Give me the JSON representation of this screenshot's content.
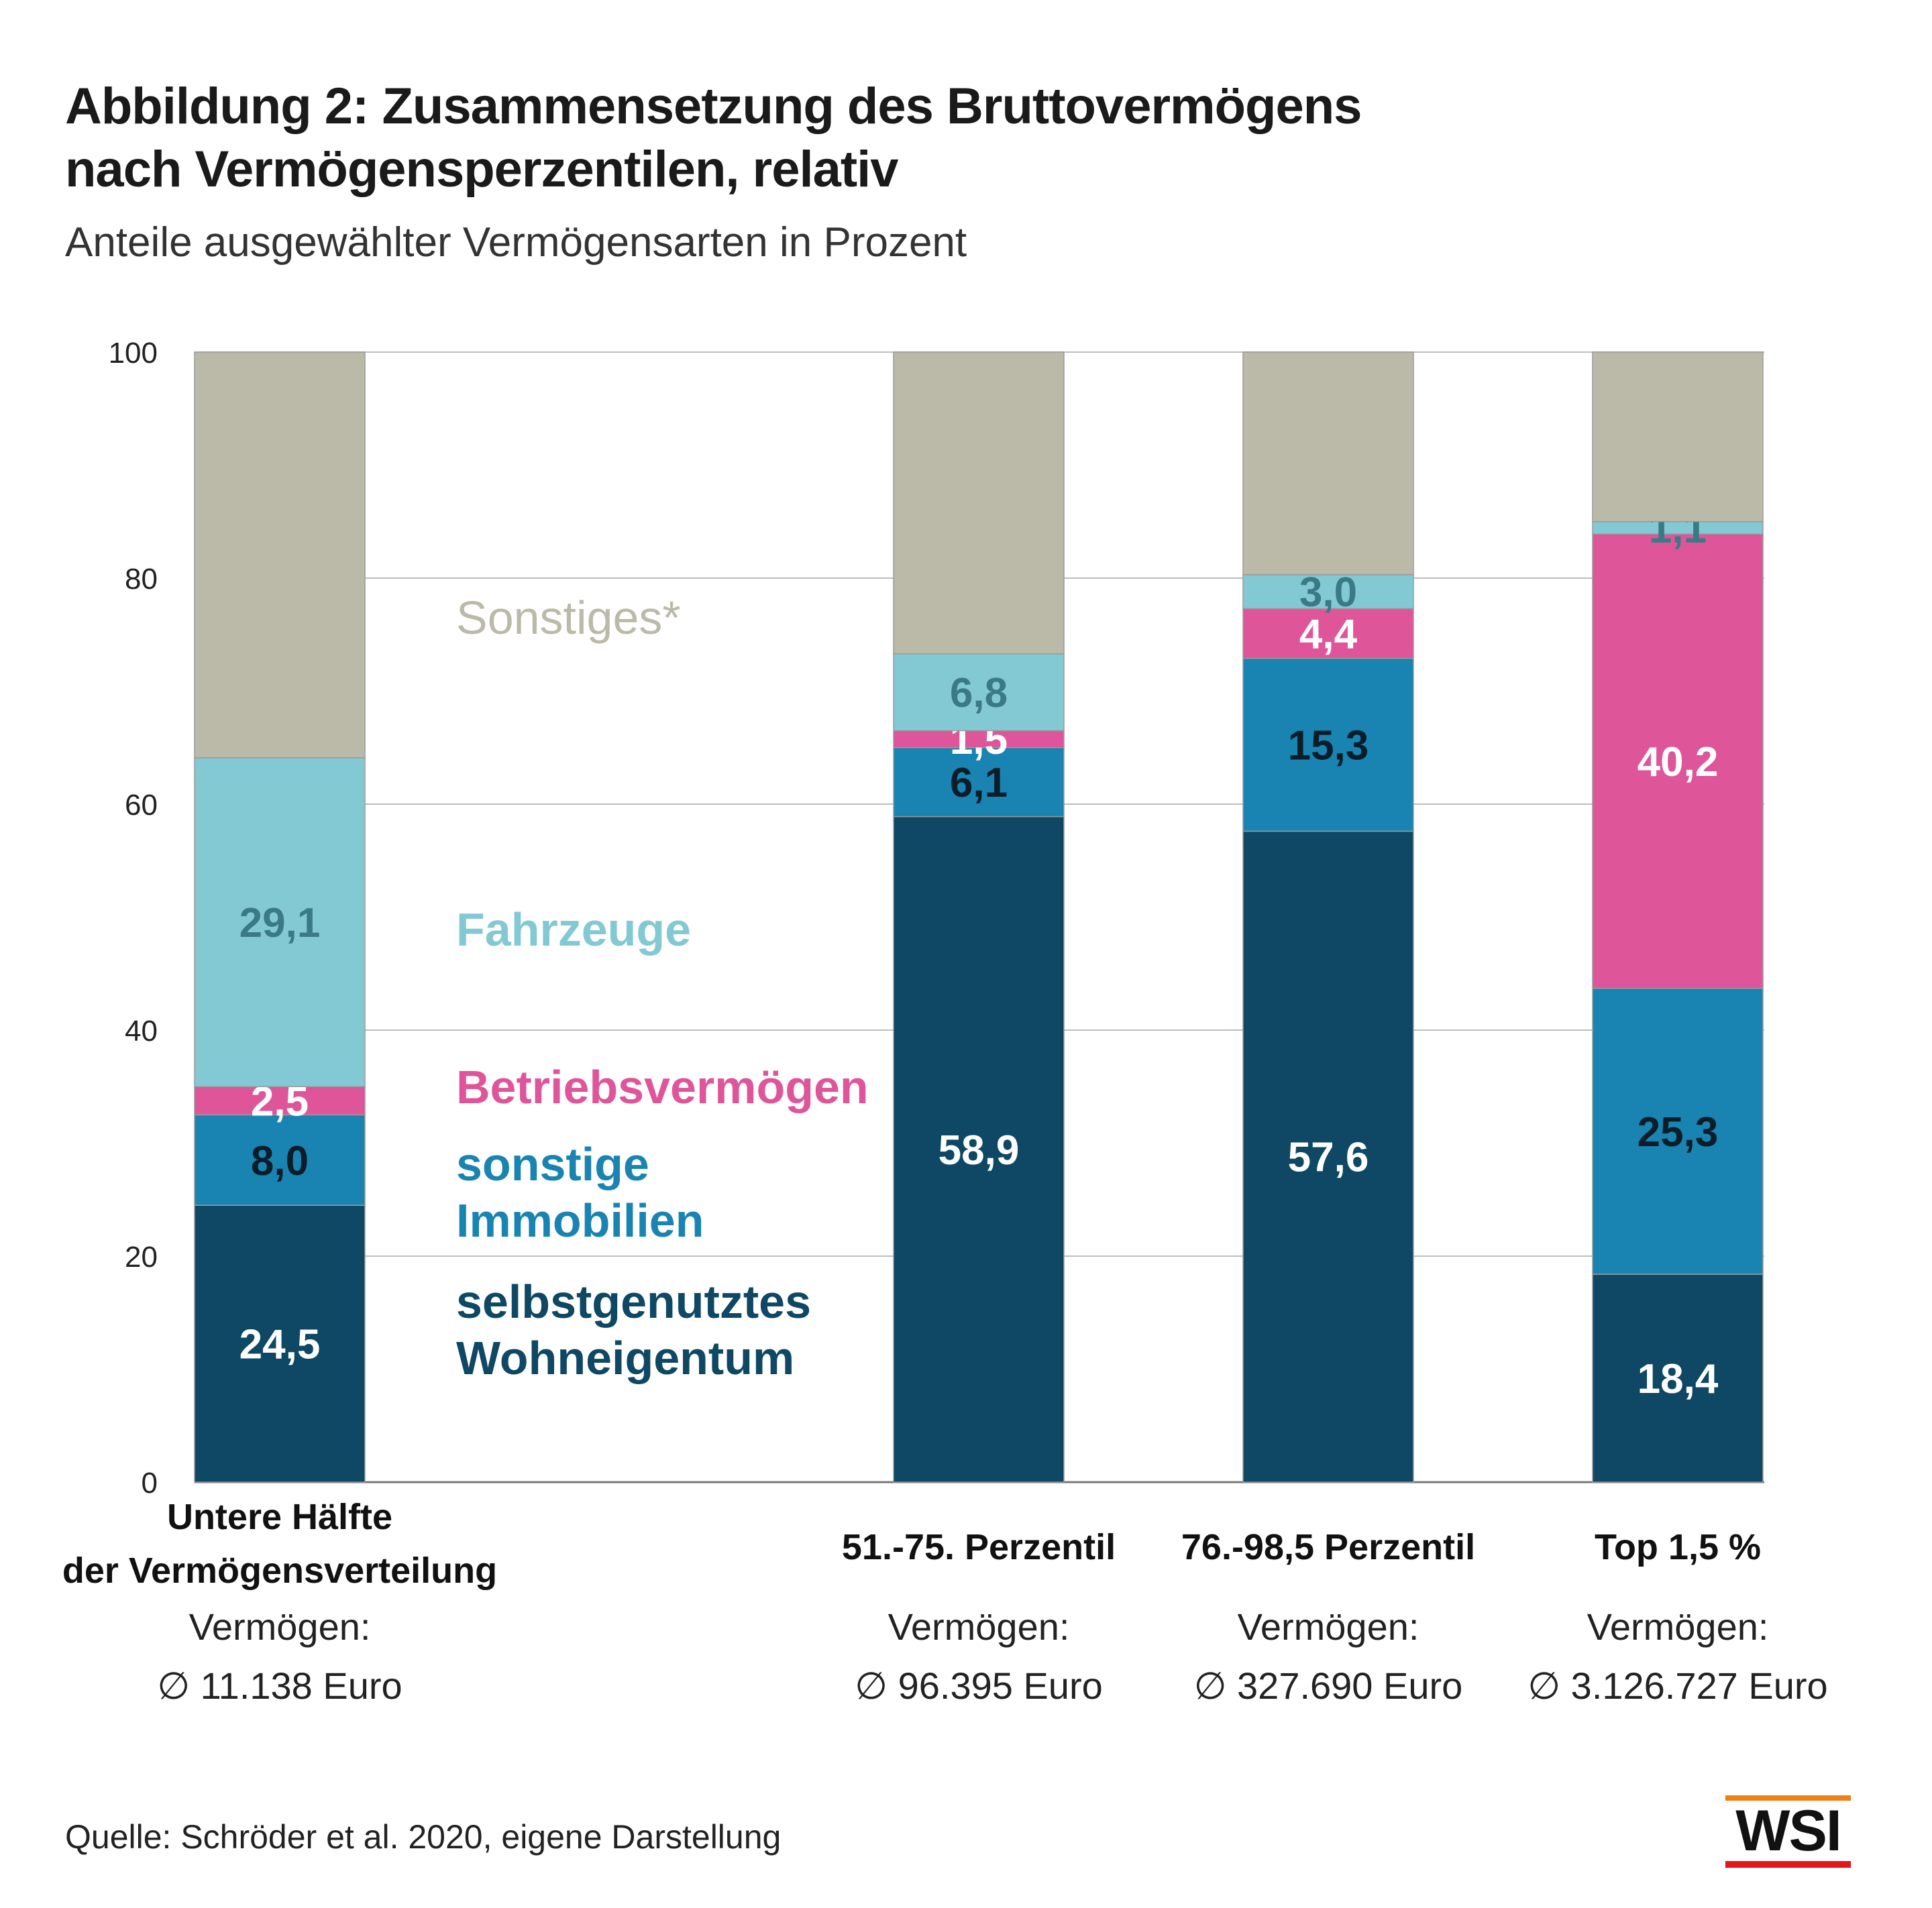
{
  "title_line1": "Abbildung 2: Zusammensetzung des Bruttovermögens",
  "title_line2": "nach Vermögensperzentilen, relativ",
  "subtitle": "Anteile ausgewählter Vermögensarten in Prozent",
  "source": "Quelle: Schröder et al. 2020, eigene Darstellung",
  "logo_text": "WSI",
  "colors": {
    "selbstgenutzt": "#0e4864",
    "immobilien": "#1984b2",
    "betrieb": "#df5599",
    "fahrzeuge": "#82c9d4",
    "sonstiges": "#bbbaa9",
    "logo_orange": "#f07f16",
    "logo_red": "#e3161a"
  },
  "chart_data": {
    "type": "bar",
    "stacked": true,
    "ylim": [
      0,
      100
    ],
    "yticks": [
      0,
      20,
      40,
      60,
      80,
      100
    ],
    "grid": true,
    "categories": [
      {
        "label_lines": [
          "Untere Hälfte",
          "der Vermögensverteilung"
        ],
        "wealth_lines": [
          "Vermögen:",
          "∅ 11.138 Euro"
        ]
      },
      {
        "label_lines": [
          "51.-75. Perzentil"
        ],
        "wealth_lines": [
          "Vermögen:",
          "∅ 96.395 Euro"
        ]
      },
      {
        "label_lines": [
          "76.-98,5 Perzentil"
        ],
        "wealth_lines": [
          "Vermögen:",
          "∅ 327.690 Euro"
        ]
      },
      {
        "label_lines": [
          "Top 1,5 %"
        ],
        "wealth_lines": [
          "Vermögen:",
          "∅ 3.126.727 Euro"
        ]
      }
    ],
    "series": [
      {
        "key": "selbstgenutzt",
        "name_lines": [
          "selbstgenutztes",
          "Wohneigentum"
        ],
        "values": [
          24.5,
          58.9,
          57.6,
          18.4
        ],
        "labels": [
          "24,5",
          "58,9",
          "57,6",
          "18,4"
        ],
        "label_color": "#ffffff"
      },
      {
        "key": "immobilien",
        "name_lines": [
          "sonstige",
          "Immobilien"
        ],
        "values": [
          8.0,
          6.1,
          15.3,
          25.3
        ],
        "labels": [
          "8,0",
          "6,1",
          "15,3",
          "25,3"
        ],
        "label_color": "#0c1d2a"
      },
      {
        "key": "betrieb",
        "name_lines": [
          "Betriebsvermögen"
        ],
        "values": [
          2.5,
          1.5,
          4.4,
          40.2
        ],
        "labels": [
          "2,5",
          "1,5",
          "4,4",
          "40,2"
        ],
        "label_color": "#ffffff"
      },
      {
        "key": "fahrzeuge",
        "name_lines": [
          "Fahrzeuge"
        ],
        "values": [
          29.1,
          6.8,
          3.0,
          1.1
        ],
        "labels": [
          "29,1",
          "6,8",
          "3,0",
          "1,1"
        ],
        "label_color": "#3a7a86"
      },
      {
        "key": "sonstiges",
        "name_lines": [
          "Sonstiges*"
        ],
        "values": [
          35.9,
          26.7,
          19.7,
          15.0
        ],
        "labels": [
          "",
          "",
          "",
          ""
        ],
        "label_color": "#ffffff"
      }
    ]
  }
}
